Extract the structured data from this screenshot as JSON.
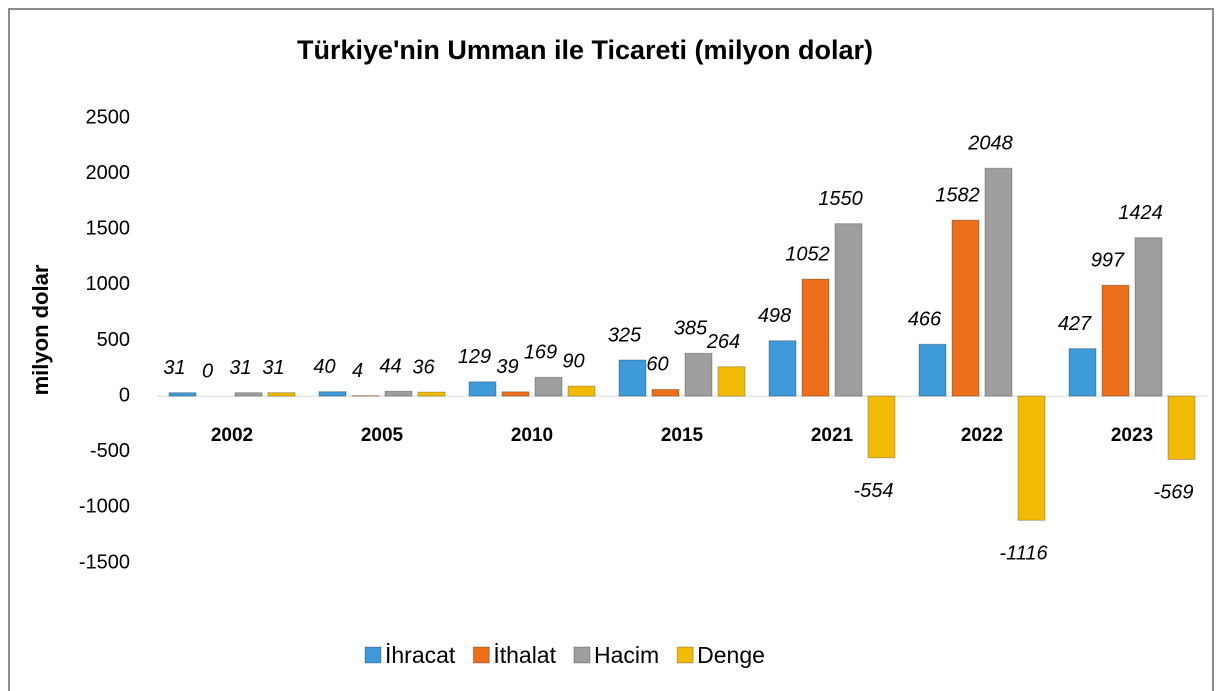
{
  "chart_data": {
    "type": "bar",
    "title": "Türkiye'nin Umman ile Ticareti (milyon dolar)",
    "y_label": "milyon dolar",
    "categories": [
      "2002",
      "2005",
      "2010",
      "2015",
      "2021",
      "2022",
      "2023"
    ],
    "series": [
      {
        "name": "İhracat",
        "color": "#3e9ad8",
        "values": [
          31,
          40,
          129,
          325,
          498,
          466,
          427
        ]
      },
      {
        "name": "İthalat",
        "color": "#ec6f1c",
        "values": [
          0,
          4,
          39,
          60,
          1052,
          1582,
          997
        ]
      },
      {
        "name": "Hacim",
        "color": "#9e9e9e",
        "values": [
          31,
          44,
          169,
          385,
          1550,
          2048,
          1424
        ]
      },
      {
        "name": "Denge",
        "color": "#f2bb05",
        "values": [
          31,
          36,
          90,
          264,
          -554,
          -1116,
          -569
        ]
      }
    ],
    "ylim": [
      -1500,
      2500
    ],
    "yticks": [
      -1500,
      -1000,
      -500,
      0,
      500,
      1000,
      1500,
      2000,
      2500
    ],
    "grid": false,
    "legend": "bottom"
  }
}
